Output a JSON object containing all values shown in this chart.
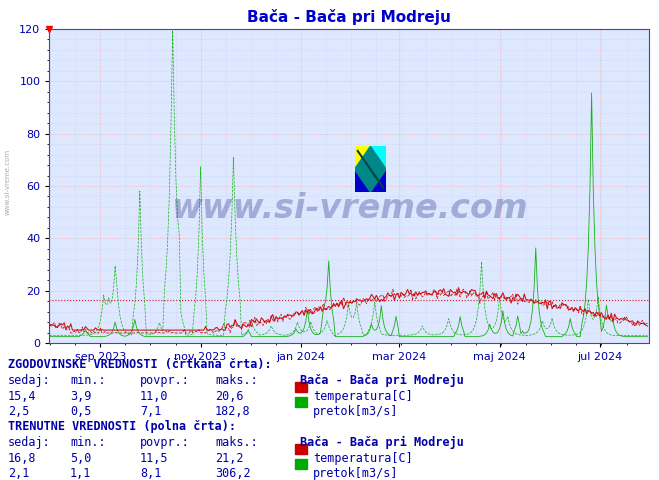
{
  "title": "Bača - Bača pri Modreju",
  "title_color": "#0000cc",
  "bg_color": "#ffffff",
  "plot_bg_color": "#dde8ff",
  "grid_color_major": "#ff9999",
  "grid_color_minor": "#bbbbee",
  "ylim": [
    0,
    120
  ],
  "yticks": [
    0,
    20,
    40,
    60,
    80,
    100,
    120
  ],
  "x_labels": [
    "sep 2023",
    "nov 2023",
    "jan 2024",
    "mar 2024",
    "maj 2024",
    "jul 2024"
  ],
  "x_tick_days": [
    31,
    92,
    153,
    213,
    274,
    335
  ],
  "temp_color": "#cc0000",
  "flow_color": "#00aa00",
  "avg_temp_dotted": 16.5,
  "avg_flow_dotted": 16.5,
  "watermark_text": "www.si-vreme.com",
  "watermark_color": "#1a237e",
  "watermark_alpha": 0.3,
  "legend_station": "Bača - Bača pri Modreju",
  "hist_label": "ZGODOVINSKE VREDNOSTI (črtkana črta):",
  "curr_label": "TRENUTNE VREDNOSTI (polna črta):",
  "hist_temp_sedaj": "15,4",
  "hist_temp_min": "3,9",
  "hist_temp_avg": "11,0",
  "hist_temp_max": "20,6",
  "hist_flow_sedaj": "2,5",
  "hist_flow_min": "0,5",
  "hist_flow_avg": "7,1",
  "hist_flow_max": "182,8",
  "curr_temp_sedaj": "16,8",
  "curr_temp_min": "5,0",
  "curr_temp_avg": "11,5",
  "curr_temp_max": "21,2",
  "curr_flow_sedaj": "2,1",
  "curr_flow_min": "1,1",
  "curr_flow_avg": "8,1",
  "curr_flow_max": "306,2",
  "temp_label": "temperatura[C]",
  "flow_label": "pretok[m3/s]",
  "n_days": 365,
  "seed": 42,
  "text_color": "#0000aa",
  "left_watermark": "www.si-vreme.com"
}
